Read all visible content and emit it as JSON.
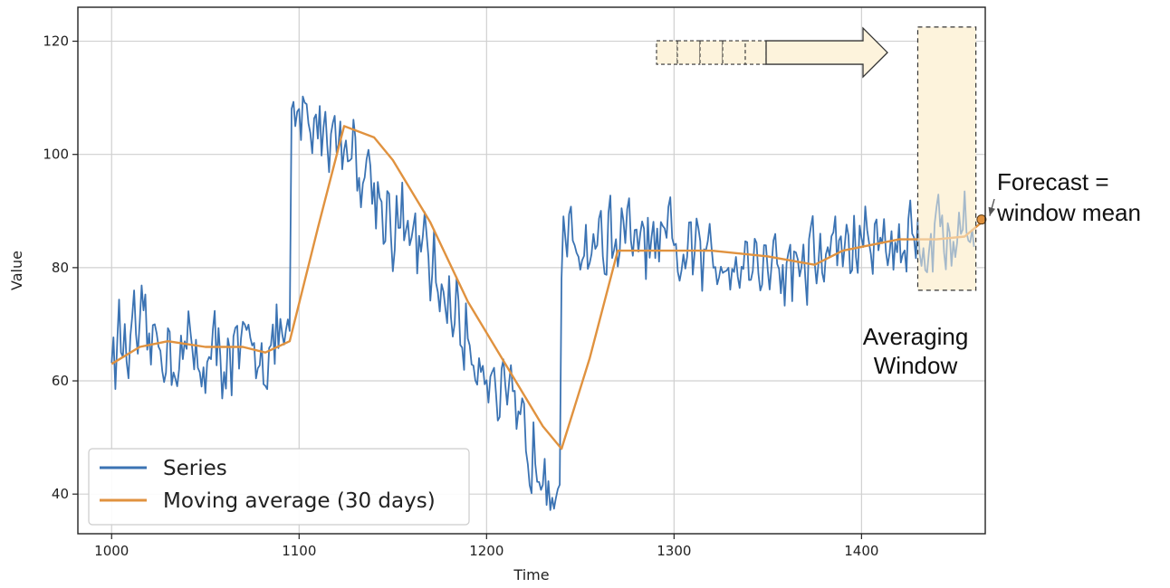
{
  "chart_data": {
    "type": "line",
    "title": "",
    "xlabel": "Time",
    "ylabel": "Value",
    "xlim": [
      982,
      1466
    ],
    "ylim": [
      33,
      126
    ],
    "xticks": [
      1000,
      1100,
      1200,
      1300,
      1400
    ],
    "yticks": [
      40,
      60,
      80,
      100,
      120
    ],
    "grid": true,
    "legend_placement": "lower-left",
    "series": [
      {
        "name": "Series",
        "color": "#3b73b3",
        "style": "noisy",
        "x": [
          1000,
          1010,
          1020,
          1030,
          1040,
          1050,
          1060,
          1070,
          1080,
          1090,
          1095,
          1096,
          1100,
          1110,
          1120,
          1130,
          1140,
          1150,
          1160,
          1170,
          1180,
          1190,
          1200,
          1210,
          1220,
          1230,
          1239,
          1240,
          1241,
          1250,
          1260,
          1270,
          1280,
          1290,
          1300,
          1310,
          1320,
          1330,
          1340,
          1350,
          1360,
          1370,
          1380,
          1390,
          1400,
          1410,
          1420,
          1430,
          1440,
          1450,
          1460
        ],
        "values": [
          66,
          67,
          67,
          66,
          65,
          64,
          65,
          64,
          66,
          67,
          68,
          102,
          106,
          105,
          104,
          100,
          95,
          88,
          85,
          80,
          74,
          67,
          63,
          55,
          50,
          47,
          43,
          78,
          82,
          84,
          85,
          85,
          84,
          83,
          82,
          82,
          81,
          83,
          82,
          81,
          80,
          81,
          82,
          84,
          84,
          85,
          85,
          85,
          86,
          86,
          87
        ]
      },
      {
        "name": "Moving average (30 days)",
        "color": "#e0923f",
        "style": "smooth",
        "x": [
          1000,
          1015,
          1030,
          1050,
          1070,
          1082,
          1095,
          1110,
          1124,
          1140,
          1150,
          1170,
          1190,
          1210,
          1230,
          1240,
          1255,
          1270,
          1290,
          1320,
          1350,
          1375,
          1390,
          1420,
          1440,
          1455,
          1464
        ],
        "values": [
          63,
          66,
          67,
          66,
          66,
          65,
          67,
          87,
          105,
          103,
          99,
          88,
          74,
          63,
          52,
          48,
          64,
          83,
          83,
          83,
          82,
          80.5,
          83,
          85,
          85,
          85.5,
          88
        ]
      }
    ],
    "annotations": {
      "window_label_line1": "Averaging",
      "window_label_line2": "Window",
      "forecast_line1": "Forecast =",
      "forecast_line2": "window mean",
      "window_x": [
        1430,
        1461
      ],
      "window_y": [
        76,
        122.5
      ],
      "forecast_point": [
        1464,
        88.5
      ]
    },
    "colors": {
      "series": "#3b73b3",
      "moving_average": "#e0923f",
      "window_fill": "#fdf3dc"
    }
  }
}
